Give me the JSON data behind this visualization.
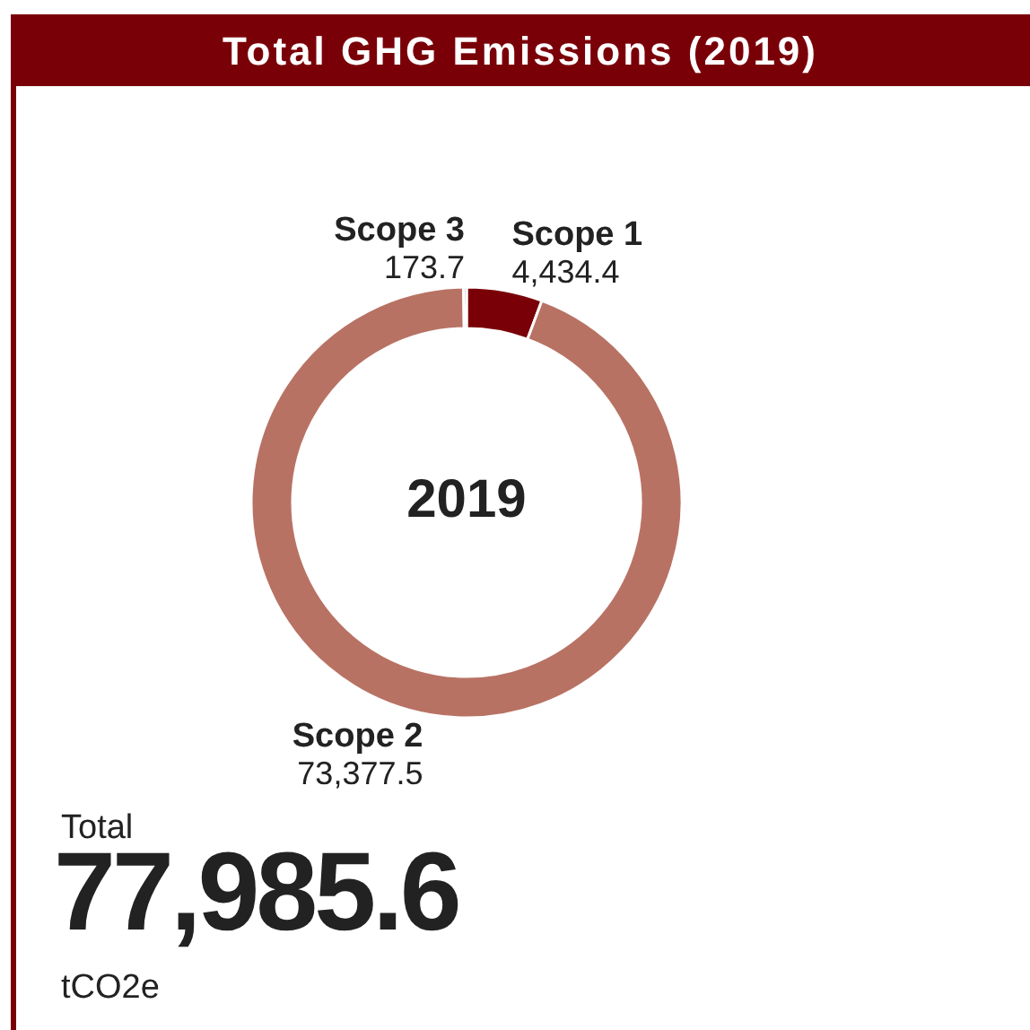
{
  "chart_data": {
    "type": "donut",
    "title": "Total GHG Emissions (2019)",
    "categories": [
      "Scope 1",
      "Scope 2",
      "Scope 3"
    ],
    "values": [
      4434.4,
      73377.5,
      173.7
    ],
    "colors": [
      "#7a0008",
      "#b87264",
      "#8c8c8c"
    ],
    "value_labels": [
      "4,434.4",
      "73,377.5",
      "173.7"
    ],
    "annotations": [
      "2019",
      "Total",
      "77,985.6",
      "tCO2e"
    ]
  }
}
